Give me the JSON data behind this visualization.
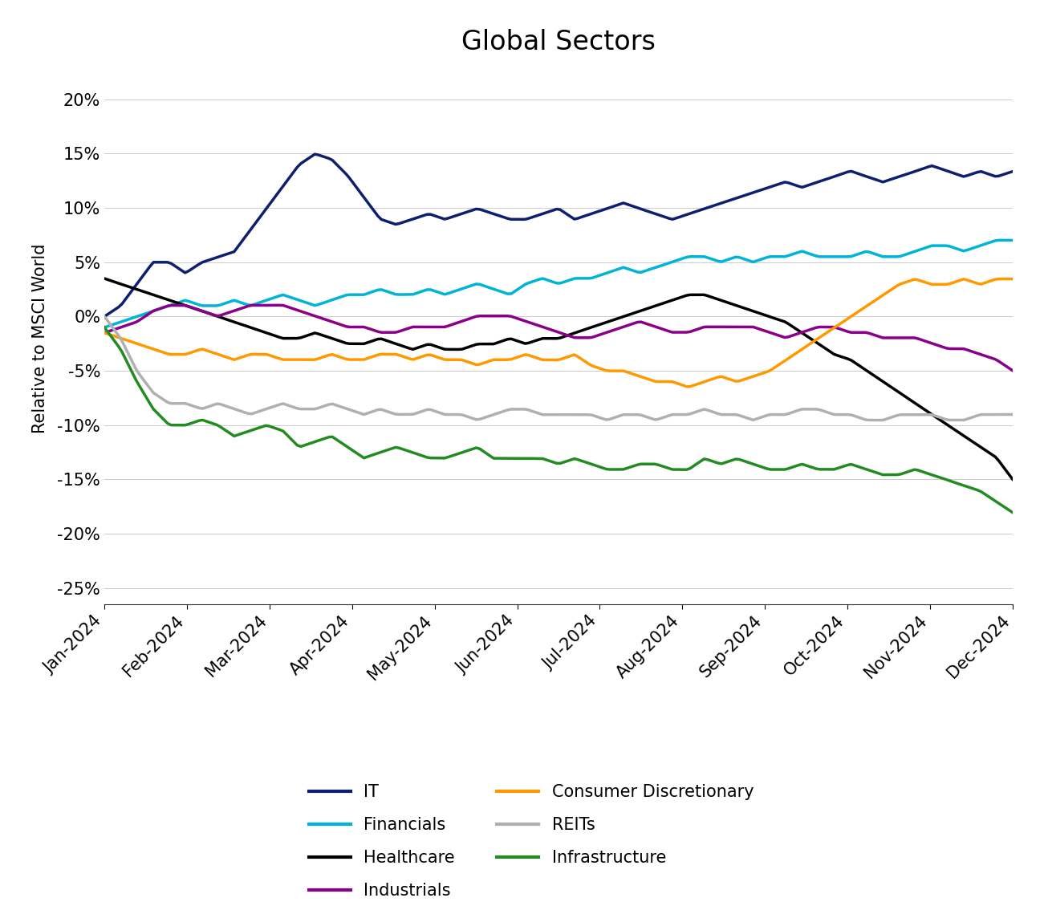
{
  "title": "Global Sectors",
  "ylabel": "Relative to MSCI World",
  "ytick_vals": [
    -0.25,
    -0.2,
    -0.15,
    -0.1,
    -0.05,
    0.0,
    0.05,
    0.1,
    0.15,
    0.2
  ],
  "ytick_labels": [
    "-25%",
    "-20%",
    "-15%",
    "-10%",
    "-5%",
    "0%",
    "5%",
    "10%",
    "15%",
    "20%"
  ],
  "xtick_labels": [
    "Jan-2024",
    "Feb-2024",
    "Mar-2024",
    "Apr-2024",
    "May-2024",
    "Jun-2024",
    "Jul-2024",
    "Aug-2024",
    "Sep-2024",
    "Oct-2024",
    "Nov-2024",
    "Dec-2024"
  ],
  "colors": {
    "IT": "#0d1f6e",
    "Financials": "#00b4d8",
    "Healthcare": "#000000",
    "Industrials": "#8b008b",
    "Consumer Discretionary": "#ff9900",
    "REITs": "#b0b0b0",
    "Infrastructure": "#228b22"
  },
  "legend_col1": [
    "IT",
    "Healthcare",
    "Consumer Discretionary",
    "Infrastructure"
  ],
  "legend_col2": [
    "Financials",
    "Industrials",
    "REITs"
  ],
  "ylim": [
    -0.265,
    0.225
  ],
  "background_color": "#ffffff",
  "title_fontsize": 24,
  "axis_label_fontsize": 15,
  "tick_fontsize": 15,
  "legend_fontsize": 15,
  "linewidth": 2.5,
  "n_points": 260,
  "seed": 12
}
